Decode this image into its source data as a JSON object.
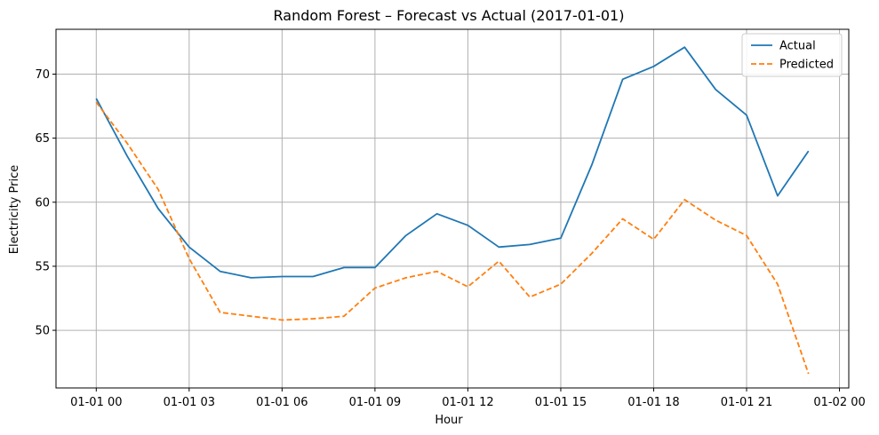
{
  "chart_data": {
    "type": "line",
    "title": "Random Forest – Forecast vs Actual (2017-01-01)",
    "xlabel": "Hour",
    "ylabel": "Electricity Price",
    "x": [
      0,
      1,
      2,
      3,
      4,
      5,
      6,
      7,
      8,
      9,
      10,
      11,
      12,
      13,
      14,
      15,
      16,
      17,
      18,
      19,
      20,
      21,
      22,
      23
    ],
    "xlim": [
      -1.3,
      24.3
    ],
    "ylim": [
      45.5,
      73.5
    ],
    "x_ticks": [
      {
        "value": 0,
        "label": "01-01 00"
      },
      {
        "value": 3,
        "label": "01-01 03"
      },
      {
        "value": 6,
        "label": "01-01 06"
      },
      {
        "value": 9,
        "label": "01-01 09"
      },
      {
        "value": 12,
        "label": "01-01 12"
      },
      {
        "value": 15,
        "label": "01-01 15"
      },
      {
        "value": 18,
        "label": "01-01 18"
      },
      {
        "value": 21,
        "label": "01-01 21"
      },
      {
        "value": 24,
        "label": "01-02 00"
      }
    ],
    "y_ticks": [
      {
        "value": 50,
        "label": "50"
      },
      {
        "value": 55,
        "label": "55"
      },
      {
        "value": 60,
        "label": "60"
      },
      {
        "value": 65,
        "label": "65"
      },
      {
        "value": 70,
        "label": "70"
      }
    ],
    "grid": true,
    "legend_position": "top-right",
    "series": [
      {
        "name": "Actual",
        "color": "#1f77b4",
        "style": "solid",
        "values": [
          68.1,
          63.6,
          59.5,
          56.5,
          54.6,
          54.1,
          54.2,
          54.2,
          54.9,
          54.9,
          57.4,
          59.1,
          58.2,
          56.5,
          56.7,
          57.2,
          62.9,
          69.6,
          70.6,
          72.1,
          68.8,
          66.8,
          60.5,
          64.0
        ]
      },
      {
        "name": "Predicted",
        "color": "#ff7f0e",
        "style": "dashed",
        "values": [
          67.8,
          64.6,
          61.0,
          55.6,
          51.4,
          51.1,
          50.8,
          50.9,
          51.1,
          53.3,
          54.1,
          54.6,
          53.4,
          55.4,
          52.6,
          53.6,
          56.0,
          58.7,
          57.1,
          60.2,
          58.6,
          57.4,
          53.6,
          46.6
        ]
      }
    ]
  }
}
